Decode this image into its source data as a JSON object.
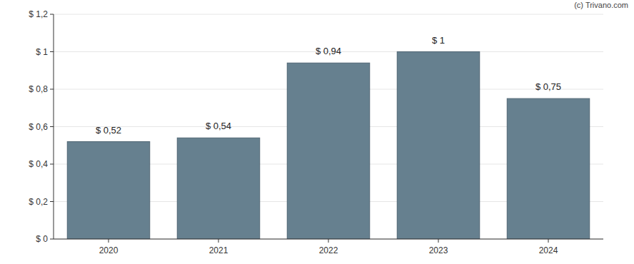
{
  "chart_data": {
    "type": "bar",
    "annotations": [
      "(c) Trivano.com"
    ],
    "categories": [
      "2020",
      "2021",
      "2022",
      "2023",
      "2024"
    ],
    "values": [
      0.52,
      0.54,
      0.94,
      1,
      0.75
    ],
    "value_labels": [
      "$ 0,52",
      "$ 0,54",
      "$ 0,94",
      "$ 1",
      "$ 0,75"
    ],
    "data_labels": true,
    "color": "#66808f",
    "ylim": [
      0,
      1.2
    ],
    "yticks": [
      {
        "value": 0,
        "label": "$ 0"
      },
      {
        "value": 0.2,
        "label": "$ 0,2"
      },
      {
        "value": 0.4,
        "label": "$ 0,4"
      },
      {
        "value": 0.6,
        "label": "$ 0,6"
      },
      {
        "value": 0.8,
        "label": "$ 0,8"
      },
      {
        "value": 1,
        "label": "$ 1"
      },
      {
        "value": 1.2,
        "label": "$ 1,2"
      }
    ],
    "grid": true
  }
}
